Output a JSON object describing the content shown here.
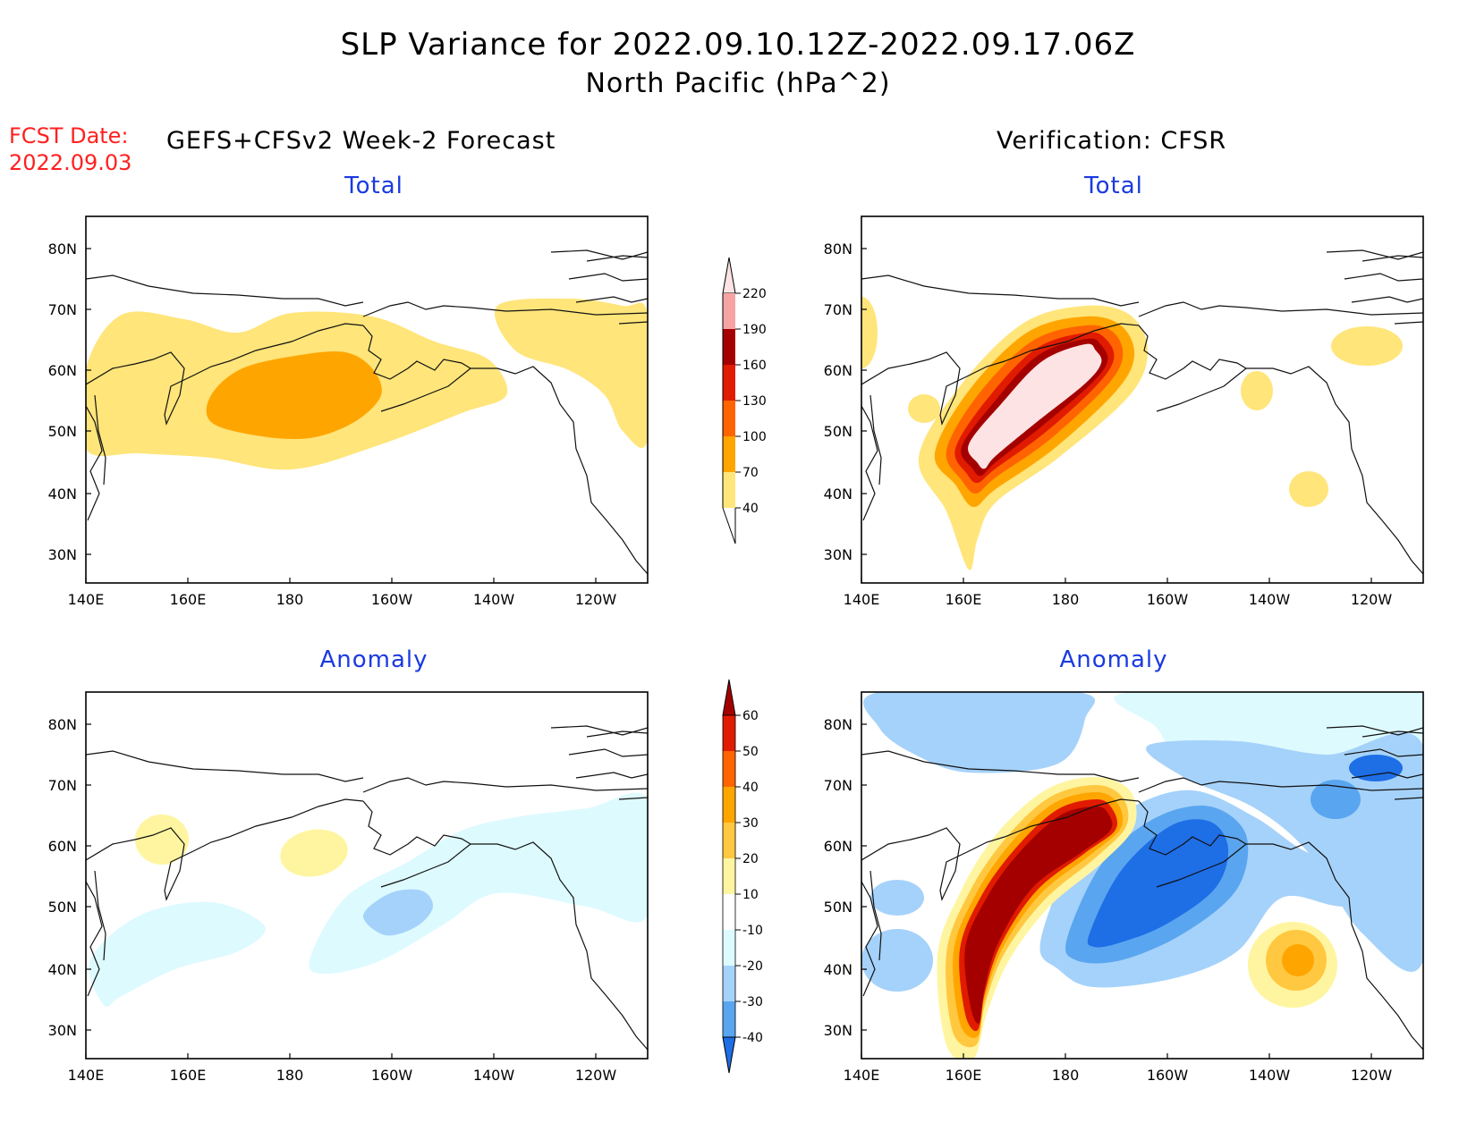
{
  "title": {
    "line1": "SLP Variance for 2022.09.10.12Z-2022.09.17.06Z",
    "line2": "North Pacific (hPa^2)"
  },
  "forecast": {
    "date_label": "FCST Date:",
    "date_value": "2022.09.03",
    "left_heading": "GEFS+CFSv2 Week-2 Forecast",
    "right_heading": "Verification: CFSR"
  },
  "panels": {
    "top_left": {
      "subtitle": "Total"
    },
    "top_right": {
      "subtitle": "Total"
    },
    "bottom_left": {
      "subtitle": "Anomaly"
    },
    "bottom_right": {
      "subtitle": "Anomaly"
    }
  },
  "axes": {
    "lon_labels": [
      "140E",
      "160E",
      "180",
      "160W",
      "140W",
      "120W"
    ],
    "lat_labels": [
      "80N",
      "70N",
      "60N",
      "50N",
      "40N",
      "30N"
    ]
  },
  "colorbars": {
    "total": {
      "levels": [
        "40",
        "70",
        "100",
        "130",
        "160",
        "190",
        "220"
      ],
      "colors": [
        "#ffe57a",
        "#ffa500",
        "#ff6400",
        "#e01b00",
        "#a50000",
        "#f5a3a3",
        "#fde3e3"
      ]
    },
    "anomaly": {
      "levels": [
        "60",
        "50",
        "40",
        "30",
        "20",
        "10",
        "-10",
        "-20",
        "-30",
        "-40"
      ],
      "colors": [
        "#a50000",
        "#e01b00",
        "#ff6400",
        "#ffa500",
        "#ffc840",
        "#fff5a0",
        "#ffffff",
        "#ddfaff",
        "#a5d2fa",
        "#5aa5f0",
        "#1e6ee6",
        "#1450c8"
      ]
    }
  }
}
